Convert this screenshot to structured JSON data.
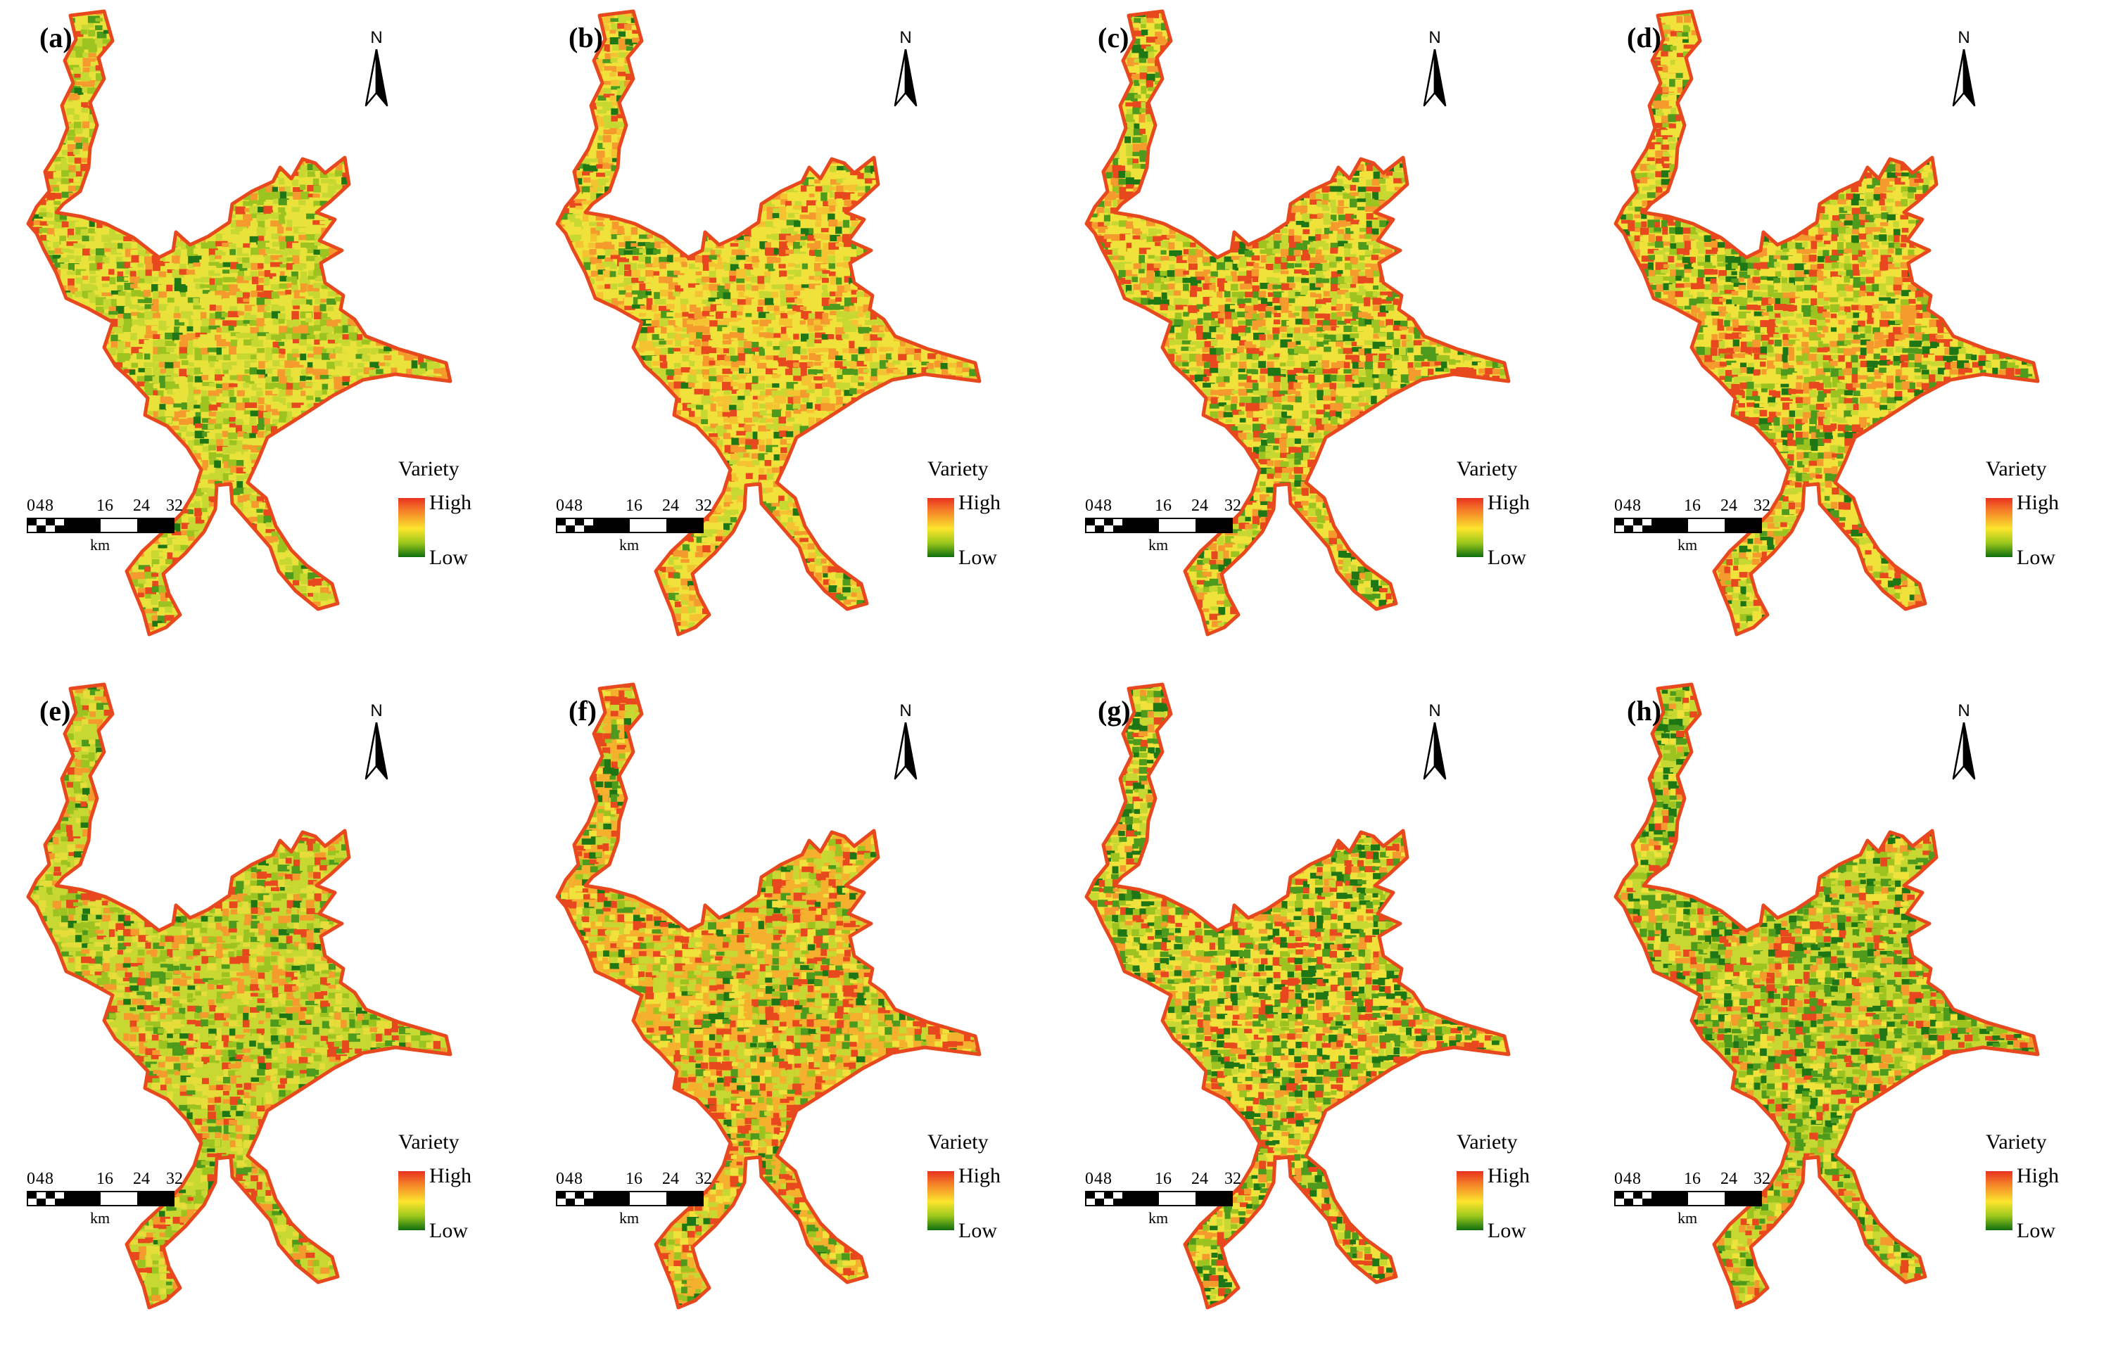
{
  "figure": {
    "panels": [
      {
        "label": "(a)",
        "palette": [
          "#e9e23a",
          "#c8d832",
          "#9cc31f",
          "#f59a2c",
          "#e8481e",
          "#4e9a1c",
          "#1e7614"
        ],
        "weights": [
          30,
          26,
          16,
          12,
          7,
          6,
          3
        ]
      },
      {
        "label": "(b)",
        "palette": [
          "#f0e23a",
          "#f5c232",
          "#c8d832",
          "#f59a2c",
          "#e8481e",
          "#4e9a1c",
          "#1e7614"
        ],
        "weights": [
          26,
          18,
          16,
          16,
          12,
          8,
          4
        ]
      },
      {
        "label": "(c)",
        "palette": [
          "#f0e23a",
          "#c8d832",
          "#f59a2c",
          "#e8481e",
          "#9cc31f",
          "#4e9a1c",
          "#1e7614"
        ],
        "weights": [
          22,
          16,
          16,
          16,
          12,
          10,
          8
        ]
      },
      {
        "label": "(d)",
        "palette": [
          "#f0e23a",
          "#f59a2c",
          "#e8481e",
          "#c8d832",
          "#9cc31f",
          "#4e9a1c",
          "#1e7614"
        ],
        "weights": [
          20,
          18,
          18,
          14,
          12,
          10,
          8
        ]
      },
      {
        "label": "(e)",
        "palette": [
          "#c8d832",
          "#e6dc3a",
          "#9cc31f",
          "#f59a2c",
          "#e8481e",
          "#4e9a1c",
          "#1e7614"
        ],
        "weights": [
          26,
          20,
          16,
          14,
          12,
          8,
          4
        ]
      },
      {
        "label": "(f)",
        "palette": [
          "#f5b02e",
          "#c8d832",
          "#e8481e",
          "#f0e23a",
          "#9cc31f",
          "#4e9a1c",
          "#1e7614"
        ],
        "weights": [
          22,
          18,
          18,
          16,
          12,
          8,
          6
        ]
      },
      {
        "label": "(g)",
        "palette": [
          "#f0e23a",
          "#c8d832",
          "#f59a2c",
          "#e8481e",
          "#4e9a1c",
          "#1e7614",
          "#9cc31f"
        ],
        "weights": [
          18,
          16,
          14,
          12,
          14,
          14,
          12
        ]
      },
      {
        "label": "(h)",
        "palette": [
          "#c8d832",
          "#9cc31f",
          "#4e9a1c",
          "#f0e23a",
          "#f59a2c",
          "#e8481e",
          "#1e7614"
        ],
        "weights": [
          20,
          18,
          16,
          14,
          12,
          10,
          10
        ]
      }
    ],
    "north_letter": "N",
    "scalebar": {
      "ticks": [
        "0",
        "4",
        "8",
        "16",
        "24",
        "32"
      ],
      "unit": "km"
    },
    "legend": {
      "title": "Variety",
      "high": "High",
      "low": "Low"
    },
    "colors": {
      "high": "#e8321e",
      "mid": "#fce52c",
      "low": "#0e6e0e",
      "outline": "#e8481e"
    }
  }
}
